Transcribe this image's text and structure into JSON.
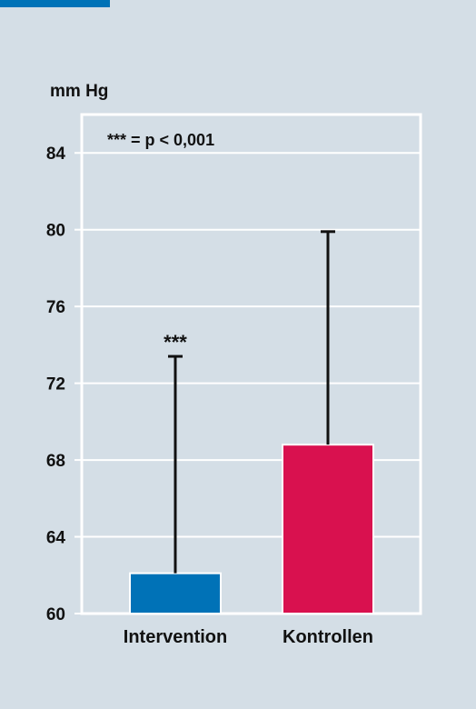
{
  "chart_data": {
    "type": "bar",
    "ylabel": "mm Hg",
    "ylim": [
      60,
      86
    ],
    "yticks": [
      60,
      64,
      68,
      72,
      76,
      80,
      84
    ],
    "ytick_labels": [
      "60",
      "64",
      "68",
      "72",
      "76",
      "80",
      "84"
    ],
    "categories": [
      "Intervention",
      "Kontrollen"
    ],
    "values": [
      62.1,
      68.8
    ],
    "error_upper": [
      73.4,
      79.9
    ],
    "bar_colors": [
      "#0072b7",
      "#d9114f"
    ],
    "significance_markers": [
      "***",
      ""
    ],
    "legend_note": "*** = p < 0,001",
    "grid": true
  },
  "colors": {
    "background": "#d4dee6",
    "accent": "#0072b7",
    "grid": "#ffffff"
  }
}
